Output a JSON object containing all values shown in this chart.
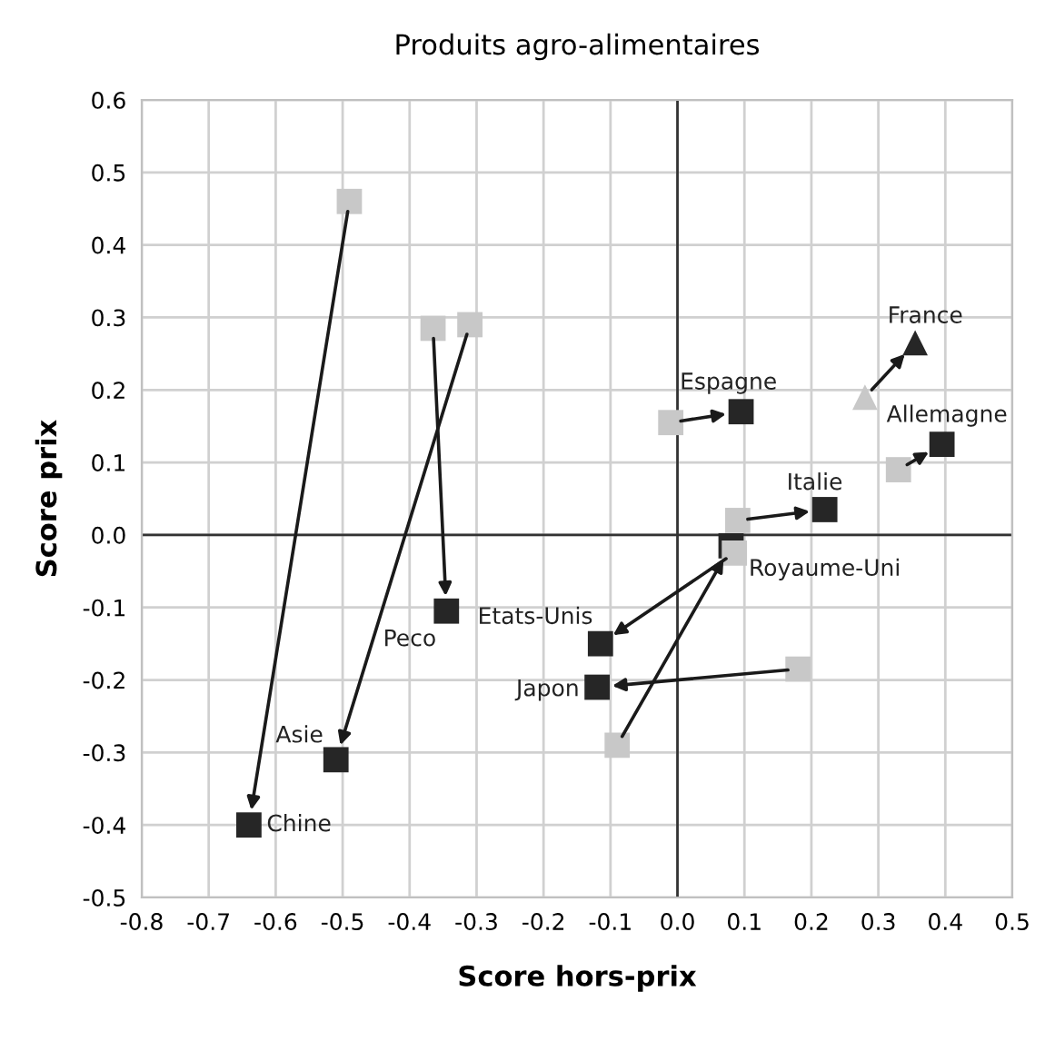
{
  "chart_data": {
    "type": "scatter",
    "title": "Produits agro-alimentaires",
    "xlabel": "Score hors-prix",
    "ylabel": "Score prix",
    "series": [
      {
        "color": "#c8c8c8",
        "marker": "square",
        "x": [
          -0.49,
          -0.31,
          -0.365,
          0.085,
          0.18,
          -0.09,
          -0.01,
          0.09,
          0.33
        ],
        "values": [
          0.46,
          0.29,
          0.285,
          -0.025,
          -0.185,
          -0.29,
          0.155,
          0.02,
          0.09
        ]
      },
      {
        "color": "#262626",
        "marker": "square",
        "x": [
          -0.64,
          -0.51,
          -0.345,
          -0.115,
          -0.12,
          0.08,
          0.095,
          0.22,
          0.395
        ],
        "values": [
          -0.4,
          -0.31,
          -0.105,
          -0.15,
          -0.21,
          -0.015,
          0.17,
          0.035,
          0.125
        ]
      },
      {
        "color": "#c8c8c8",
        "marker": "triangle",
        "x": [
          0.28
        ],
        "values": [
          0.19
        ]
      },
      {
        "color": "#262626",
        "marker": "triangle",
        "x": [
          0.355
        ],
        "values": [
          0.265
        ]
      }
    ],
    "annotations": [
      {
        "text": "Chine",
        "x": -0.64,
        "y": -0.4
      },
      {
        "text": "Asie",
        "x": -0.51,
        "y": -0.31
      },
      {
        "text": "Peco",
        "x": -0.345,
        "y": -0.105
      },
      {
        "text": "Etats-Unis",
        "x": -0.115,
        "y": -0.15
      },
      {
        "text": "Japon",
        "x": -0.12,
        "y": -0.21
      },
      {
        "text": "Royaume-Uni",
        "x": 0.08,
        "y": -0.015
      },
      {
        "text": "Espagne",
        "x": 0.095,
        "y": 0.17
      },
      {
        "text": "Italie",
        "x": 0.22,
        "y": 0.035
      },
      {
        "text": "Allemagne",
        "x": 0.395,
        "y": 0.125
      },
      {
        "text": "France",
        "x": 0.355,
        "y": 0.265
      }
    ],
    "xlim": [
      -0.8,
      0.5
    ],
    "xticks": [
      -0.8,
      -0.7,
      -0.6,
      -0.5,
      -0.4,
      -0.3,
      -0.2,
      -0.1,
      {
        "value": 0,
        "label": "0.0"
      },
      0.1,
      0.2,
      0.3,
      0.4,
      0.5
    ],
    "ylim": [
      -0.5,
      0.6
    ],
    "yticks": [
      -0.5,
      -0.4,
      -0.3,
      -0.2,
      -0.1,
      {
        "value": 0,
        "label": "0.0"
      },
      0.1,
      0.2,
      0.3,
      0.4,
      0.5,
      0.6
    ],
    "grid": true,
    "legend": false
  }
}
